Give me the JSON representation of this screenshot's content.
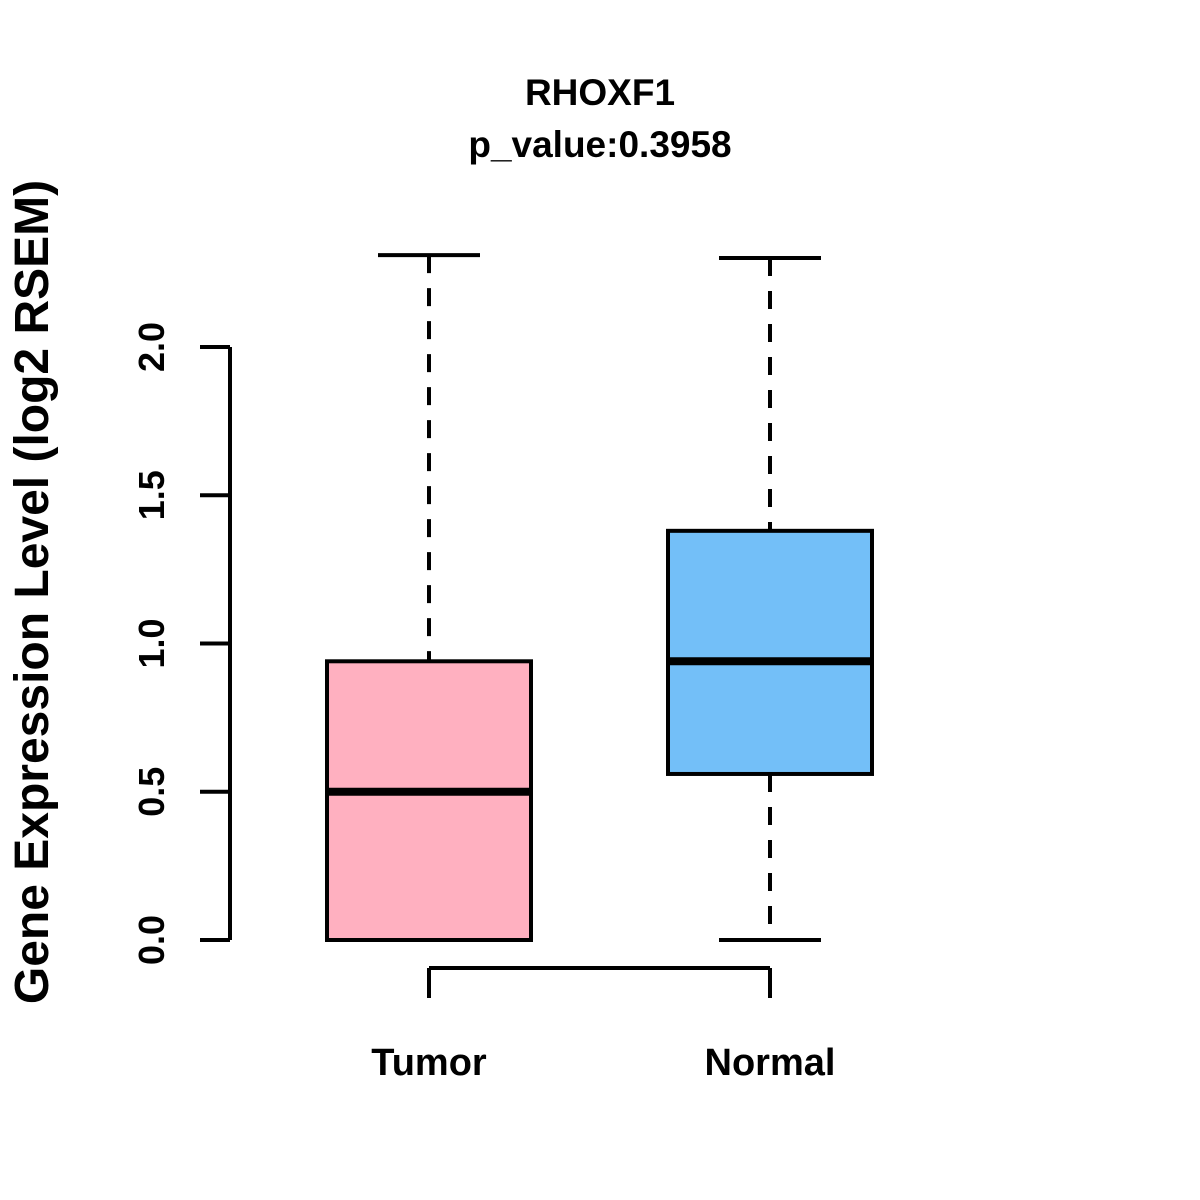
{
  "figure": {
    "title": "RHOXF1",
    "subtitle": "p_value:0.3958",
    "p_value": "0.3958"
  },
  "chart_data": {
    "type": "boxplot",
    "title": "RHOXF1",
    "subtitle": "p_value:0.3958",
    "xlabel": "",
    "ylabel": "Gene Expression Level (log2 RSEM)",
    "ylim": [
      0.0,
      2.31
    ],
    "yticks": [
      0.0,
      0.5,
      1.0,
      1.5,
      2.0
    ],
    "ytick_labels": [
      "0.0",
      "0.5",
      "1.0",
      "1.5",
      "2.0"
    ],
    "categories": [
      "Tumor",
      "Normal"
    ],
    "series": [
      {
        "name": "Tumor",
        "color": "#FFB0C0",
        "whisker_low": 0.0,
        "q1": 0.0,
        "median": 0.5,
        "q3": 0.94,
        "whisker_high": 2.31
      },
      {
        "name": "Normal",
        "color": "#73BFF8",
        "whisker_low": 0.0,
        "q1": 0.56,
        "median": 0.94,
        "q3": 1.38,
        "whisker_high": 2.3
      }
    ],
    "box_border_color": "#000000",
    "axis_color": "#000000",
    "background": "#FFFFFF",
    "grid": false,
    "legend": "none",
    "whisker_style": "dashed"
  }
}
